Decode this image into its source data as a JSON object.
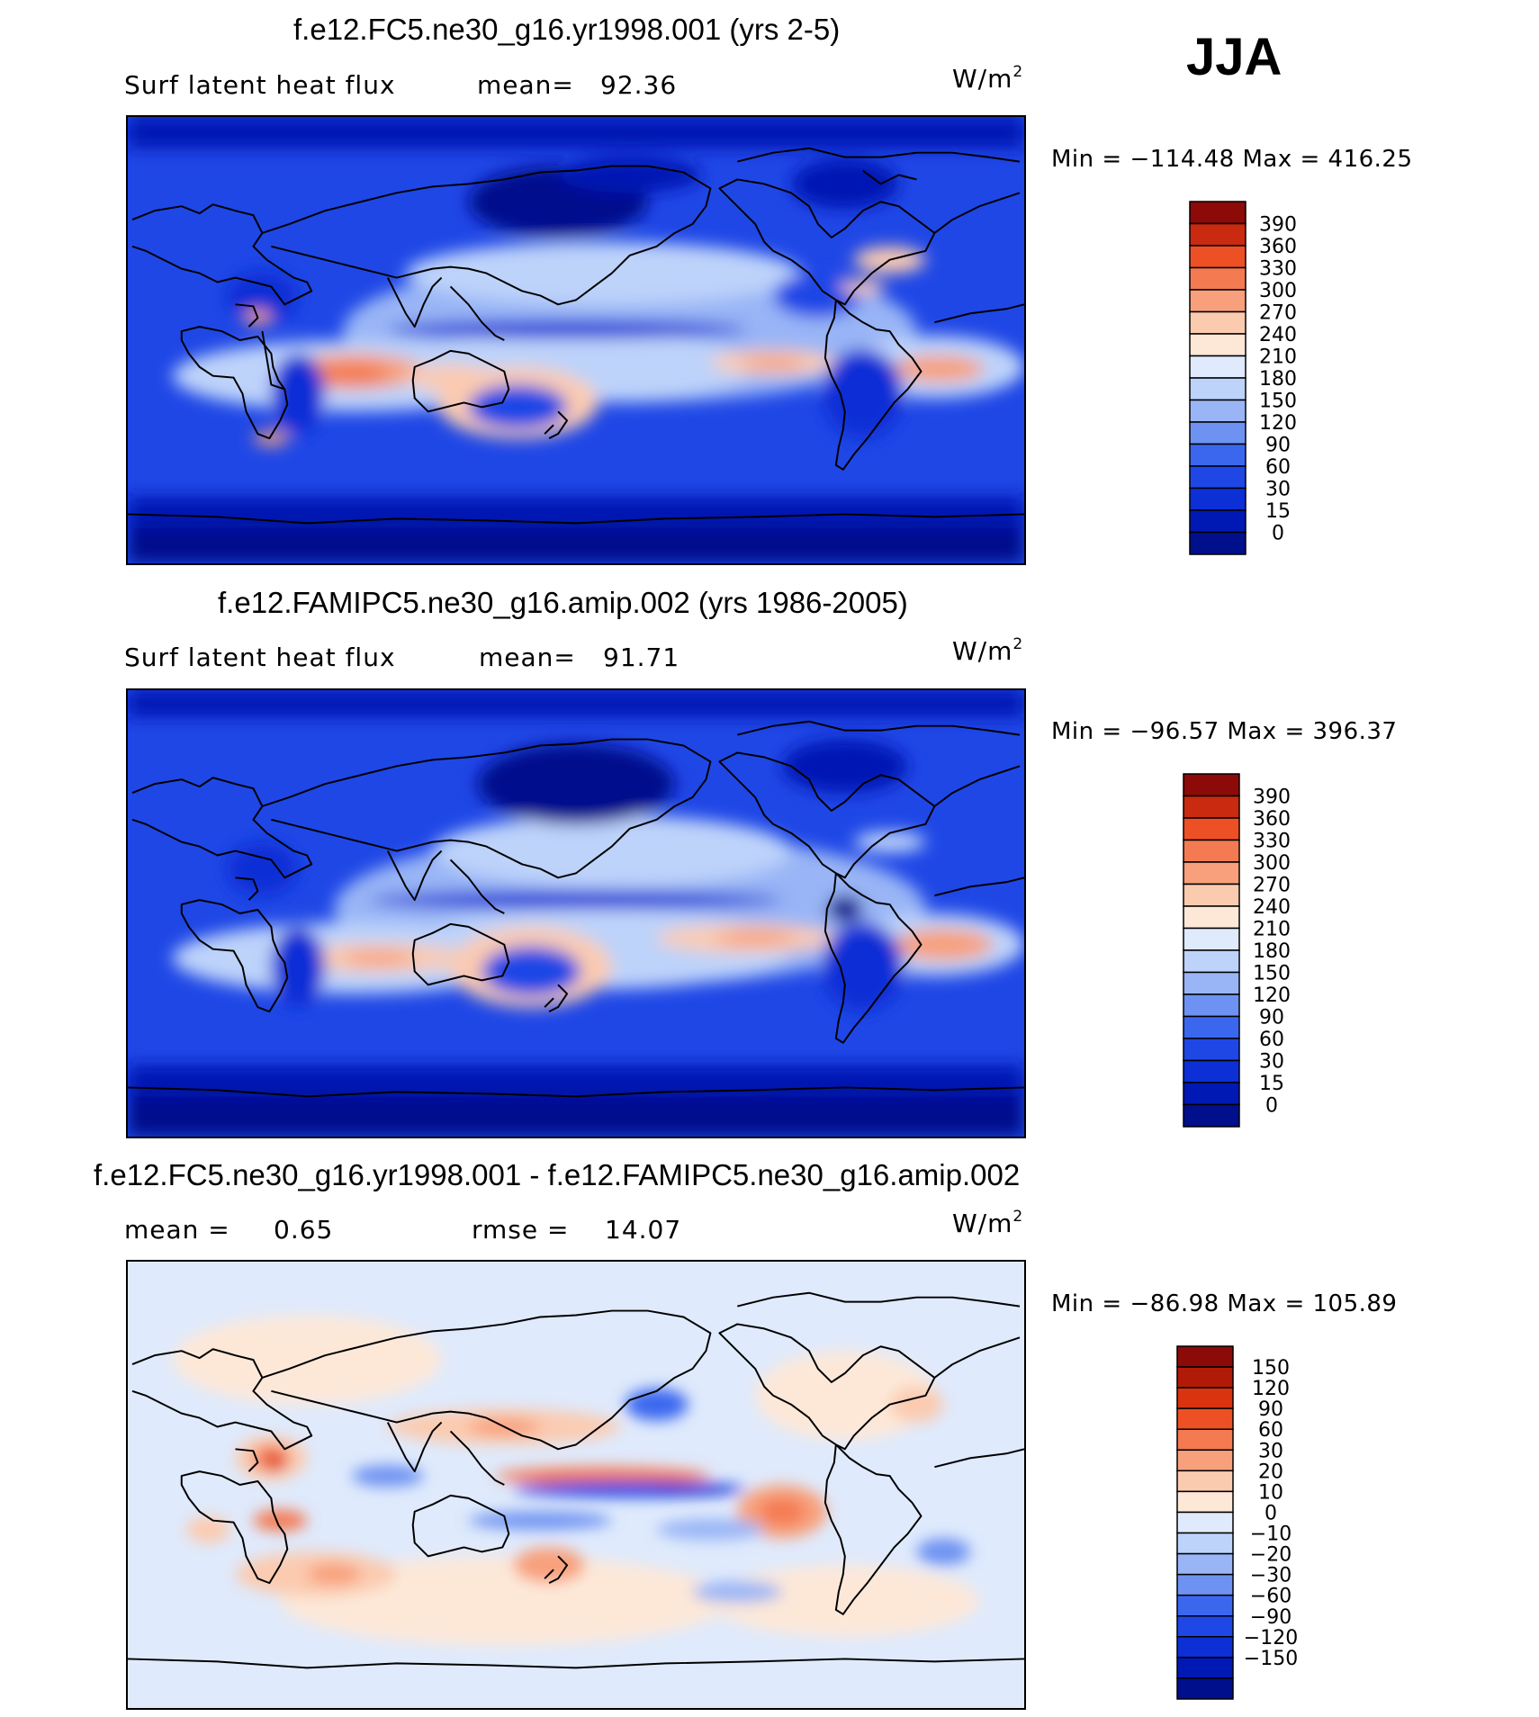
{
  "season": "JJA",
  "colors": {
    "abs_palette": [
      "#000f8c",
      "#0019b4",
      "#0d2fd6",
      "#1f47e6",
      "#3b67ef",
      "#6d92f2",
      "#99b5f6",
      "#bdd3fa",
      "#dfeafc",
      "#fde8d8",
      "#fbcbb0",
      "#f8a07c",
      "#f47a52",
      "#ee5026",
      "#c92a10",
      "#8c0a08"
    ],
    "diff_palette": [
      "#000f8c",
      "#0019b4",
      "#0d2fd6",
      "#1f47e6",
      "#3b67ef",
      "#6d92f2",
      "#99b5f6",
      "#bdd3fa",
      "#dfeafc",
      "#fde8d8",
      "#fbcbb0",
      "#f8a07c",
      "#f47a52",
      "#ee5026",
      "#d93310",
      "#b21a08",
      "#8c0a08"
    ],
    "coast": "#000000"
  },
  "panels": [
    {
      "title": "f.e12.FC5.ne30_g16.yr1998.001 (yrs 2-5)",
      "subtitle_left": "Surf latent heat flux",
      "stat_label": "mean=",
      "stat_value": "92.36",
      "units": "W/m",
      "units_exp": "2",
      "minmax": "Min = −114.48 Max = 416.25",
      "colorbar_labels": [
        "390",
        "360",
        "330",
        "300",
        "270",
        "240",
        "210",
        "180",
        "150",
        "120",
        "90",
        "60",
        "30",
        "15",
        "0"
      ]
    },
    {
      "title": "f.e12.FAMIPC5.ne30_g16.amip.002 (yrs 1986-2005)",
      "subtitle_left": "Surf latent heat flux",
      "stat_label": "mean=",
      "stat_value": "91.71",
      "units": "W/m",
      "units_exp": "2",
      "minmax": "Min = −96.57 Max = 396.37",
      "colorbar_labels": [
        "390",
        "360",
        "330",
        "300",
        "270",
        "240",
        "210",
        "180",
        "150",
        "120",
        "90",
        "60",
        "30",
        "15",
        "0"
      ]
    },
    {
      "title": "f.e12.FC5.ne30_g16.yr1998.001 - f.e12.FAMIPC5.ne30_g16.amip.002",
      "mean_label": "mean =",
      "mean_value": "0.65",
      "rmse_label": "rmse =",
      "rmse_value": "14.07",
      "units": "W/m",
      "units_exp": "2",
      "minmax": "Min = −86.98 Max = 105.89",
      "colorbar_labels": [
        "150",
        "120",
        "90",
        "60",
        "30",
        "20",
        "10",
        "0",
        "−10",
        "−20",
        "−30",
        "−60",
        "−90",
        "−120",
        "−150"
      ]
    }
  ]
}
